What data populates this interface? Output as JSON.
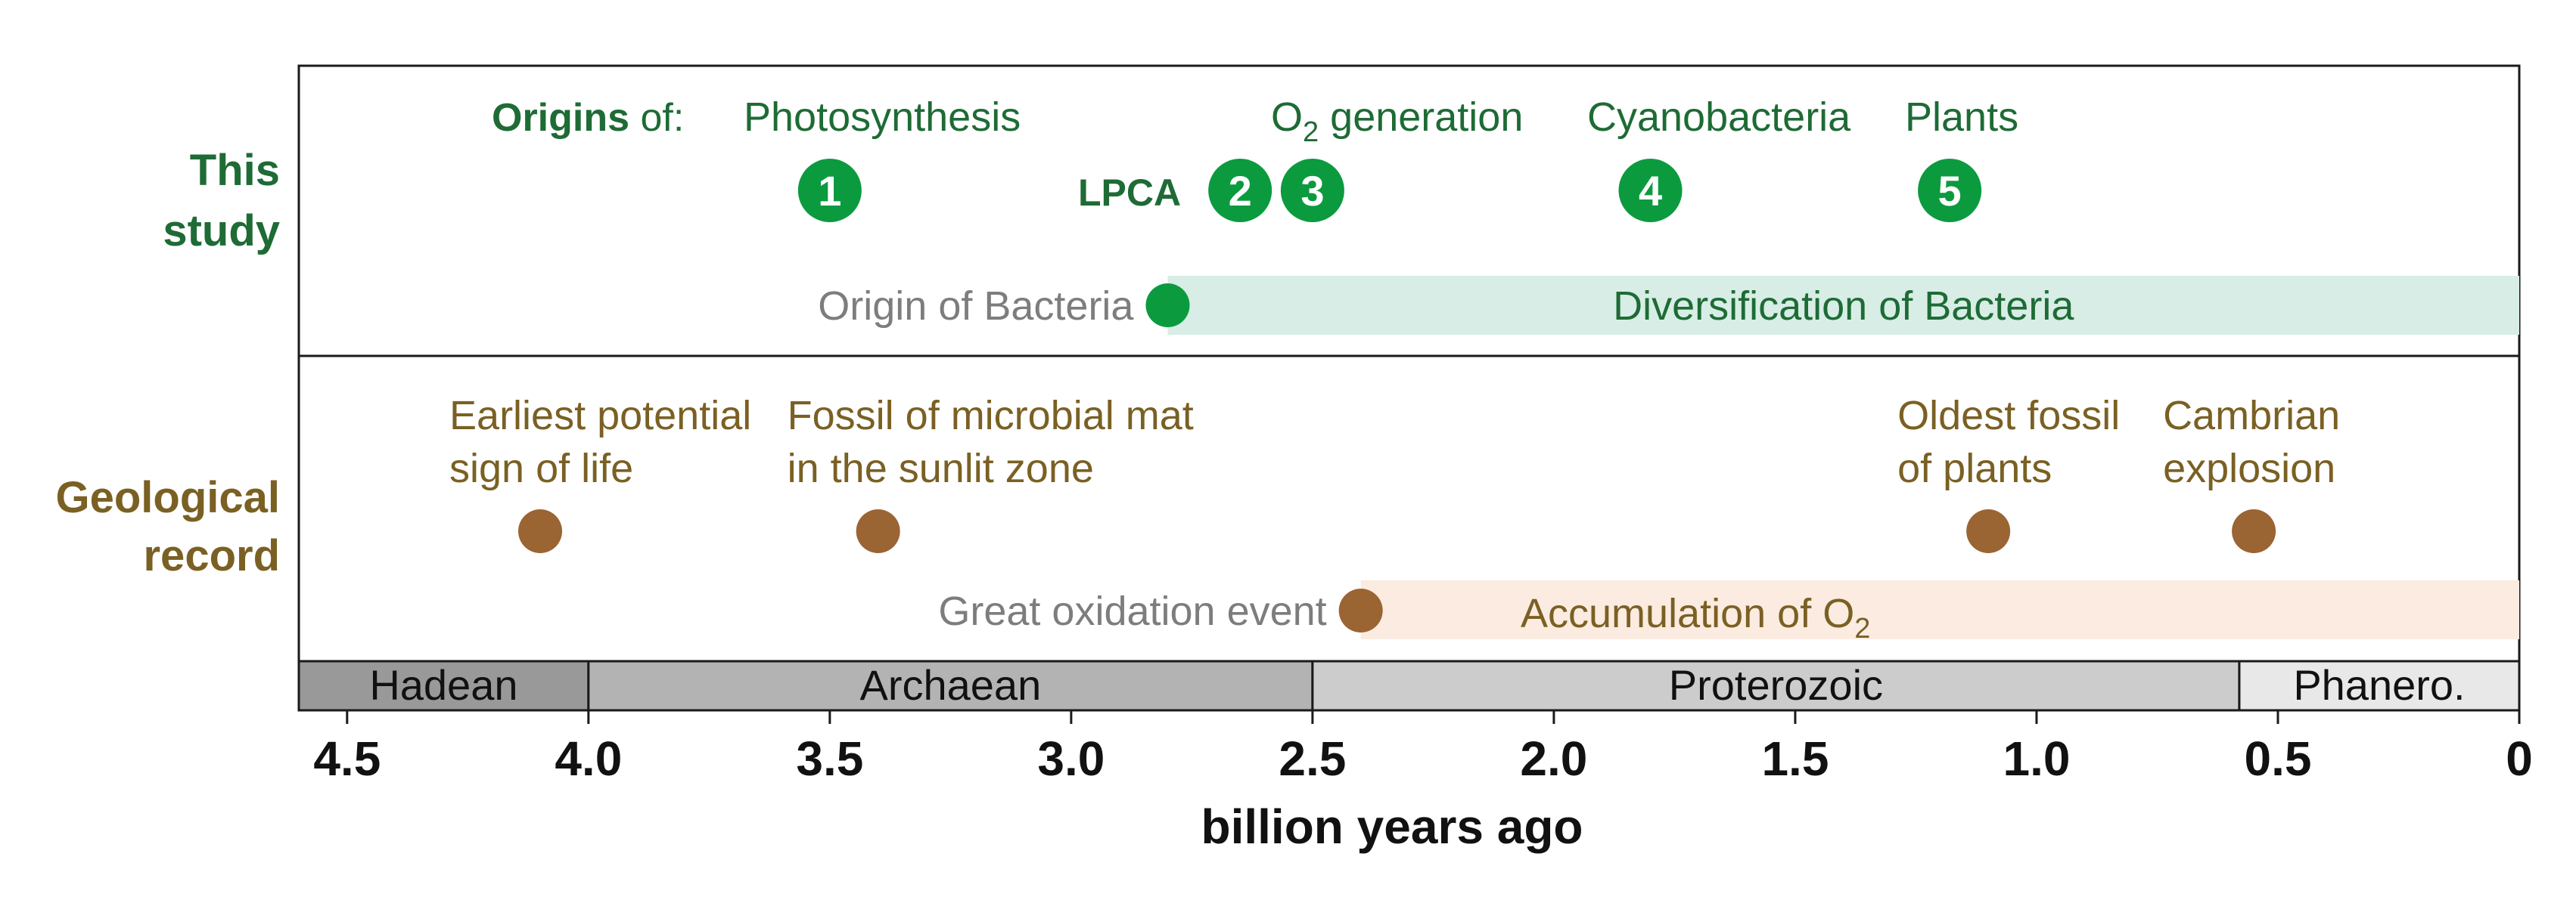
{
  "colors": {
    "green_dark": "#1e6b35",
    "green_dot": "#0c9a3f",
    "green_band": "#d7ede5",
    "gold_text": "#7a6023",
    "brown_dot": "#9a6433",
    "peach_band": "#fbebe0",
    "gray_text": "#7d7d7d"
  },
  "rows": {
    "study_label": [
      "This",
      "study"
    ],
    "geo_label": [
      "Geological",
      "record"
    ]
  },
  "study": {
    "origins_bold": "Origins",
    "origins_rest": " of:",
    "labels": {
      "photosynthesis": "Photosynthesis",
      "o2_prefix": "O",
      "o2_sub": "2",
      "o2_suffix": " generation",
      "cyanobacteria": "Cyanobacteria",
      "plants": "Plants"
    },
    "lpca": "LPCA",
    "markers": [
      {
        "num": "1",
        "age": 3.5
      },
      {
        "num": "2",
        "age": 2.65
      },
      {
        "num": "3",
        "age": 2.5
      },
      {
        "num": "4",
        "age": 1.8
      },
      {
        "num": "5",
        "age": 1.18
      }
    ],
    "origin_bacteria": {
      "label": "Origin of Bacteria",
      "age": 2.8
    },
    "diversification": {
      "label": "Diversification of Bacteria",
      "from": 2.8,
      "to": 0
    }
  },
  "geo": {
    "events": [
      {
        "lines": [
          "Earliest potential",
          "sign of life"
        ],
        "age": 4.1
      },
      {
        "lines": [
          "Fossil of microbial mat",
          "in the sunlit zone"
        ],
        "age": 3.4
      },
      {
        "lines": [
          "Oldest fossil",
          "of plants"
        ],
        "age": 1.1
      },
      {
        "lines": [
          "Cambrian",
          "explosion"
        ],
        "age": 0.55
      }
    ],
    "goe": {
      "label": "Great oxidation event",
      "age": 2.4
    },
    "accumulation": {
      "prefix": "Accumulation of O",
      "sub": "2",
      "from": 2.4,
      "to": 0
    }
  },
  "eons": [
    {
      "name": "Hadean",
      "from": 4.6,
      "to": 4.0,
      "color": "#999999"
    },
    {
      "name": "Archaean",
      "from": 4.0,
      "to": 2.5,
      "color": "#b3b3b3"
    },
    {
      "name": "Proterozoic",
      "from": 2.5,
      "to": 0.58,
      "color": "#cccccc"
    },
    {
      "name": "Phanero.",
      "from": 0.58,
      "to": 0,
      "color": "#e8e8e8"
    }
  ],
  "axis": {
    "ticks": [
      "4.5",
      "4.0",
      "3.5",
      "3.0",
      "2.5",
      "2.0",
      "1.5",
      "1.0",
      "0.5",
      "0"
    ],
    "tick_values": [
      4.5,
      4.0,
      3.5,
      3.0,
      2.5,
      2.0,
      1.5,
      1.0,
      0.5,
      0
    ],
    "domain": [
      4.6,
      0
    ],
    "label": "billion years ago"
  }
}
